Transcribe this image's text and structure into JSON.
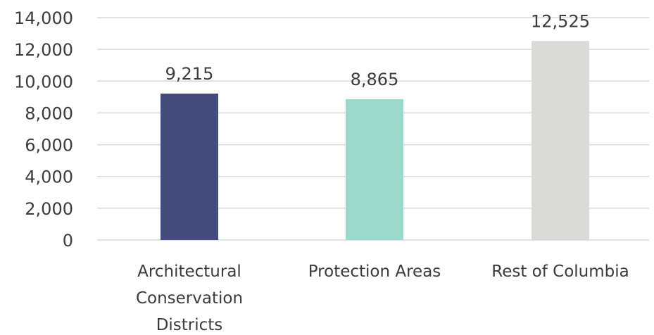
{
  "chart_data": {
    "type": "bar",
    "categories": [
      "Architectural Conservation Districts",
      "Protection Areas",
      "Rest of Columbia"
    ],
    "category_label_lines": [
      [
        "Architectural",
        "Conservation",
        "Districts"
      ],
      [
        "Protection Areas"
      ],
      [
        "Rest of Columbia"
      ]
    ],
    "values": [
      9215,
      8865,
      12525
    ],
    "data_labels": [
      "9,215",
      "8,865",
      "12,525"
    ],
    "colors": [
      "#444c7c",
      "#9dd8cc",
      "#dcdad7"
    ],
    "ylim": [
      0,
      14000
    ],
    "yticks": [
      0,
      2000,
      4000,
      6000,
      8000,
      10000,
      12000,
      14000
    ],
    "ytick_labels": [
      "0",
      "2,000",
      "4,000",
      "6,000",
      "8,000",
      "10,000",
      "12,000",
      "14,000"
    ],
    "grid": true,
    "grid_color": "#d9d9d9",
    "text_color": "#3b3b3b",
    "title": "",
    "xlabel": "",
    "ylabel": ""
  }
}
